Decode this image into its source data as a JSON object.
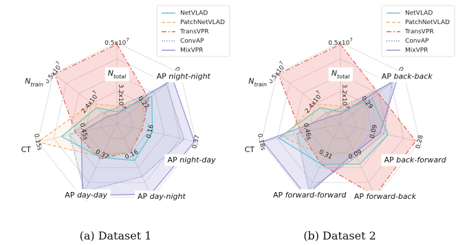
{
  "chart_data": [
    {
      "type": "radar",
      "caption": "(a) Dataset 1",
      "axes": [
        {
          "label": "N_total",
          "ticks": [
            "0.5x10^7"
          ]
        },
        {
          "label": "AP night-night",
          "ticks": [
            "0.22",
            "0.45"
          ]
        },
        {
          "label": "AP night-day",
          "ticks": [
            "0.16",
            "0.37"
          ]
        },
        {
          "label": "AP day-night",
          "ticks": [
            "0.16",
            "0.39"
          ]
        },
        {
          "label": "AP day-day",
          "ticks": [
            "0.37",
            "0.72"
          ]
        },
        {
          "label": "CT",
          "ticks": [
            "0.45s",
            "0.15s"
          ]
        },
        {
          "label": "N_train",
          "ticks": [
            "2.4x10^7",
            "0.5x10^7"
          ]
        }
      ],
      "center_tick": "3.2x10^7",
      "legend": [
        "NetVLAD",
        "PatchNetVLAD",
        "TransVPR",
        "ConvAP",
        "MixVPR"
      ],
      "series": [
        {
          "name": "NetVLAD",
          "values": [
            0.15,
            0.55,
            0.45,
            0.5,
            0.46,
            0.7,
            0.32
          ]
        },
        {
          "name": "PatchNetVLAD",
          "values": [
            0.22,
            0.42,
            0.3,
            0.38,
            0.45,
            1.0,
            0.4
          ]
        },
        {
          "name": "TransVPR",
          "values": [
            0.98,
            0.5,
            0.32,
            0.38,
            0.48,
            0.52,
            0.98
          ]
        },
        {
          "name": "ConvAP",
          "values": [
            0.2,
            0.78,
            0.85,
            0.72,
            0.92,
            0.6,
            0.22
          ]
        },
        {
          "name": "MixVPR",
          "values": [
            0.12,
            0.88,
            0.98,
            0.96,
            0.98,
            0.45,
            0.15
          ]
        }
      ]
    },
    {
      "type": "radar",
      "caption": "(b) Dataset 2",
      "axes": [
        {
          "label": "N_total",
          "ticks": [
            "0.5x10^7"
          ]
        },
        {
          "label": "AP back-back",
          "ticks": [
            "0.29",
            "0.71"
          ]
        },
        {
          "label": "AP back-forward",
          "ticks": [
            "0.09",
            "0.28"
          ]
        },
        {
          "label": "AP forward-back",
          "ticks": [
            "0.09",
            "0.28"
          ]
        },
        {
          "label": "AP forward-forward",
          "ticks": [
            "0.31",
            "0.73"
          ]
        },
        {
          "label": "CT",
          "ticks": [
            "0.46s",
            "0.18s"
          ]
        },
        {
          "label": "N_train",
          "ticks": [
            "2.4x10^7",
            "0.5x10^7"
          ]
        }
      ],
      "center_tick": "3.2x10^7",
      "legend": [
        "NetVLAD",
        "PatchNetVLAD",
        "TransVPR",
        "ConvAP",
        "MixVPR"
      ],
      "series": [
        {
          "name": "NetVLAD",
          "values": [
            0.15,
            0.5,
            0.6,
            0.55,
            0.55,
            0.78,
            0.32
          ]
        },
        {
          "name": "PatchNetVLAD",
          "values": [
            0.22,
            0.4,
            0.3,
            0.35,
            0.45,
            0.72,
            0.4
          ]
        },
        {
          "name": "TransVPR",
          "values": [
            0.98,
            0.6,
            0.95,
            0.98,
            0.55,
            0.5,
            0.98
          ]
        },
        {
          "name": "ConvAP",
          "values": [
            0.2,
            0.82,
            0.55,
            0.45,
            0.9,
            0.55,
            0.22
          ]
        },
        {
          "name": "MixVPR",
          "values": [
            0.12,
            0.9,
            0.5,
            0.4,
            0.98,
            0.98,
            0.15
          ]
        }
      ]
    }
  ],
  "colors": {
    "NetVLAD": "#6cc5c9",
    "PatchNetVLAD": "#f5b26b",
    "TransVPR": "#e8635a",
    "ConvAP": "#7f8fb8",
    "MixVPR": "#9a92d6"
  }
}
